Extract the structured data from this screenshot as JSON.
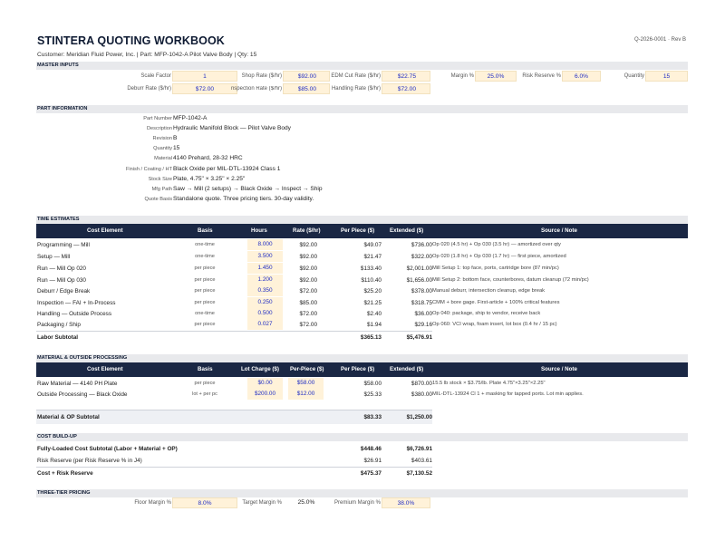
{
  "header": {
    "title": "STINTERA QUOTING WORKBOOK",
    "quote_ref": "Q-2026-0001 · Rev B",
    "customer_line": "Customer: Meridian Fluid Power, Inc.   |   Part: MFP-1042-A Pilot Valve Body   |   Qty: 15"
  },
  "sections": {
    "master_inputs": "MASTER INPUTS",
    "part_information": "PART INFORMATION",
    "time_estimates": "TIME ESTIMATES",
    "material_op": "MATERIAL & OUTSIDE PROCESSING",
    "cost_buildup": "COST BUILD-UP",
    "three_tier": "THREE-TIER PRICING"
  },
  "master_inputs": {
    "scale_factor": {
      "label": "Scale Factor",
      "value": "1"
    },
    "shop_rate": {
      "label": "Shop Rate ($/hr)",
      "value": "$92.00"
    },
    "edm_rate": {
      "label": "EDM Cut Rate ($/hr)",
      "value": "$22.75"
    },
    "margin": {
      "label": "Margin %",
      "value": "25.0%"
    },
    "risk_reserve": {
      "label": "Risk Reserve %",
      "value": "6.0%"
    },
    "quantity": {
      "label": "Quantity",
      "value": "15"
    },
    "deburr_rate": {
      "label": "Deburr Rate ($/hr)",
      "value": "$72.00"
    },
    "inspection_rate": {
      "label": "nspection Rate ($/hr)",
      "value": "$85.00"
    },
    "handling_rate": {
      "label": "Handling Rate ($/hr)",
      "value": "$72.00"
    }
  },
  "part_information": [
    {
      "label": "Part Number",
      "value": "MFP-1042-A"
    },
    {
      "label": "Description",
      "value": "Hydraulic Manifold Block — Pilot Valve Body"
    },
    {
      "label": "Revision",
      "value": "B"
    },
    {
      "label": "Quantity",
      "value": "15"
    },
    {
      "label": "Material",
      "value": "4140 Prehard, 28-32 HRC"
    },
    {
      "label": "Finish / Coating / HT",
      "value": "Black Oxide per MIL-DTL-13924 Class 1"
    },
    {
      "label": "Stock Size",
      "value": "Plate, 4.75\" × 3.25\" × 2.25\""
    },
    {
      "label": "Mfg Path",
      "value": "Saw → Mill (2 setups) → Black Oxide → Inspect → Ship"
    },
    {
      "label": "Quote Basis",
      "value": "Standalone quote. Three pricing tiers. 30-day validity."
    }
  ],
  "time_table": {
    "headers": [
      "Cost Element",
      "Basis",
      "Hours",
      "Rate ($/hr)",
      "Per Piece ($)",
      "Extended ($)",
      "Source / Note"
    ],
    "rows": [
      {
        "element": "Programming — Mill",
        "basis": "one-time",
        "hours": "8.000",
        "rate": "$92.00",
        "per_piece": "$49.07",
        "extended": "$736.00",
        "note": "Op 020 (4.5 hr) + Op 030 (3.5 hr) — amortized over qty"
      },
      {
        "element": "Setup — Mill",
        "basis": "one-time",
        "hours": "3.500",
        "rate": "$92.00",
        "per_piece": "$21.47",
        "extended": "$322.00",
        "note": "Op 020 (1.8 hr) + Op 030 (1.7 hr) — first piece, amortized"
      },
      {
        "element": "Run — Mill Op 020",
        "basis": "per piece",
        "hours": "1.450",
        "rate": "$92.00",
        "per_piece": "$133.40",
        "extended": "$2,001.00",
        "note": "Mill Setup 1: top face, ports, cartridge bore (87 min/pc)"
      },
      {
        "element": "Run — Mill Op 030",
        "basis": "per piece",
        "hours": "1.200",
        "rate": "$92.00",
        "per_piece": "$110.40",
        "extended": "$1,656.00",
        "note": "Mill Setup 2: bottom face, counterbores, datum cleanup (72 min/pc)"
      },
      {
        "element": "Deburr / Edge Break",
        "basis": "per piece",
        "hours": "0.350",
        "rate": "$72.00",
        "per_piece": "$25.20",
        "extended": "$378.00",
        "note": "Manual deburr, intersection cleanup, edge break"
      },
      {
        "element": "Inspection — FAI + In-Process",
        "basis": "per piece",
        "hours": "0.250",
        "rate": "$85.00",
        "per_piece": "$21.25",
        "extended": "$318.75",
        "note": "CMM + bore gage. First-article + 100% critical features"
      },
      {
        "element": "Handling — Outside Process",
        "basis": "one-time",
        "hours": "0.500",
        "rate": "$72.00",
        "per_piece": "$2.40",
        "extended": "$36.00",
        "note": "Op 040: package, ship to vendor, receive back"
      },
      {
        "element": "Packaging / Ship",
        "basis": "per piece",
        "hours": "0.027",
        "rate": "$72.00",
        "per_piece": "$1.94",
        "extended": "$29.16",
        "note": "Op 060: VCI wrap, foam insert, lot box (0.4 hr / 15 pc)"
      }
    ],
    "subtotal": {
      "label": "Labor Subtotal",
      "per_piece": "$365.13",
      "extended": "$5,476.91"
    }
  },
  "material_table": {
    "headers": [
      "Cost Element",
      "Basis",
      "Lot Charge ($)",
      "Per-Piece ($)",
      "Per Piece ($)",
      "Extended ($)",
      "Source / Note"
    ],
    "rows": [
      {
        "element": "Raw Material — 4140 PH Plate",
        "basis": "per piece",
        "lot": "$0.00",
        "per_piece_in": "$58.00",
        "per_piece": "$58.00",
        "extended": "$870.00",
        "note": "15.5 lb stock × $3.75/lb. Plate 4.75\"×3.25\"×2.25\""
      },
      {
        "element": "Outside Processing — Black Oxide",
        "basis": "lot + per pc",
        "lot": "$200.00",
        "per_piece_in": "$12.00",
        "per_piece": "$25.33",
        "extended": "$380.00",
        "note": "MIL-DTL-13924 Cl 1 + masking for tapped ports. Lot min applies."
      }
    ],
    "subtotal": {
      "label": "Material & OP Subtotal",
      "per_piece": "$83.33",
      "extended": "$1,250.00"
    }
  },
  "cost_buildup": [
    {
      "label": "Fully-Loaded Cost Subtotal (Labor + Material + OP)",
      "per_piece": "$448.46",
      "extended": "$6,726.91",
      "bold": true
    },
    {
      "label": "Risk Reserve (per Risk Reserve % in J4)",
      "per_piece": "$26.91",
      "extended": "$403.61",
      "bold": false
    },
    {
      "label": "Cost + Risk Reserve",
      "per_piece": "$475.37",
      "extended": "$7,130.52",
      "bold": true
    }
  ],
  "pricing": {
    "floor": {
      "label": "Floor Margin %",
      "value": "8.0%"
    },
    "target": {
      "label": "Target Margin %",
      "value": "25.0%"
    },
    "premium": {
      "label": "Premium Margin %",
      "value": "38.0%"
    }
  },
  "colors": {
    "header_bg": "#1a2744",
    "input_bg": "#fff2d9",
    "input_text": "#1f2cc4",
    "section_bg": "#e8e9ec"
  }
}
